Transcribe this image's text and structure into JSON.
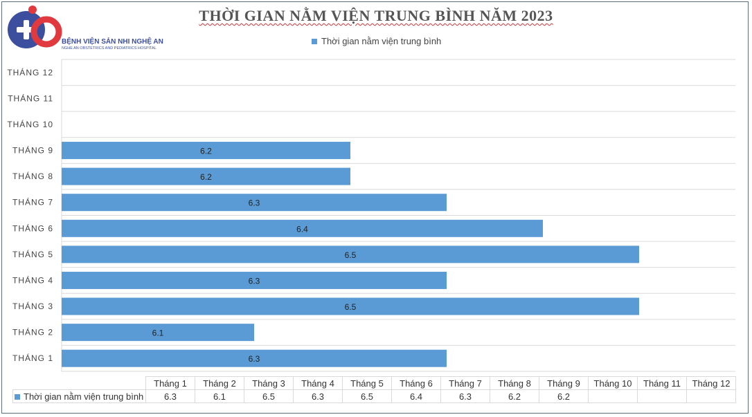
{
  "logo": {
    "name": "BỆNH VIỆN SẢN NHI NGHỆ AN",
    "subtitle": "NGHE AN OBSTETRICS AND PEDIATRICS HOSPITAL"
  },
  "chart_data": {
    "type": "bar",
    "orientation": "horizontal",
    "title": "THỜI GIAN NẰM VIỆN TRUNG BÌNH NĂM 2023",
    "categories": [
      "THÁNG 1",
      "THÁNG 2",
      "THÁNG 3",
      "THÁNG 4",
      "THÁNG 5",
      "THÁNG 6",
      "THÁNG 7",
      "THÁNG 8",
      "THÁNG 9",
      "THÁNG 10",
      "THÁNG 11",
      "THÁNG 12"
    ],
    "series": [
      {
        "name": "Thời gian nằm viện trung bình",
        "values": [
          6.3,
          6.1,
          6.5,
          6.3,
          6.5,
          6.4,
          6.3,
          6.2,
          6.2,
          null,
          null,
          null
        ],
        "color": "#5b9bd5"
      }
    ],
    "xlim": [
      5.9,
      6.5
    ],
    "grid": true,
    "legend_position": "top",
    "data_table": {
      "columns": [
        "Tháng 1",
        "Tháng 2",
        "Tháng 3",
        "Tháng 4",
        "Tháng 5",
        "Tháng 6",
        "Tháng 7",
        "Tháng 8",
        "Tháng 9",
        "Tháng 10",
        "Tháng 11",
        "Tháng 12"
      ]
    }
  }
}
